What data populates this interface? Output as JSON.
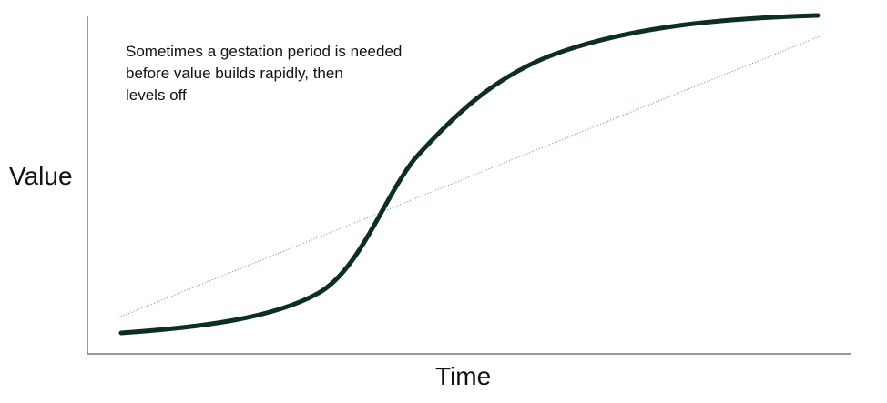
{
  "diagram": {
    "annotation_text": "Sometimes a gestation period is needed\nbefore value builds rapidly, then\nlevels off",
    "y_axis_label": "Value",
    "x_axis_label": "Time"
  },
  "colors": {
    "curve": "#0d2f1d",
    "trend_line": "#5f8f80",
    "axis": "#777777",
    "text": "#111111",
    "background": "#ffffff"
  }
}
